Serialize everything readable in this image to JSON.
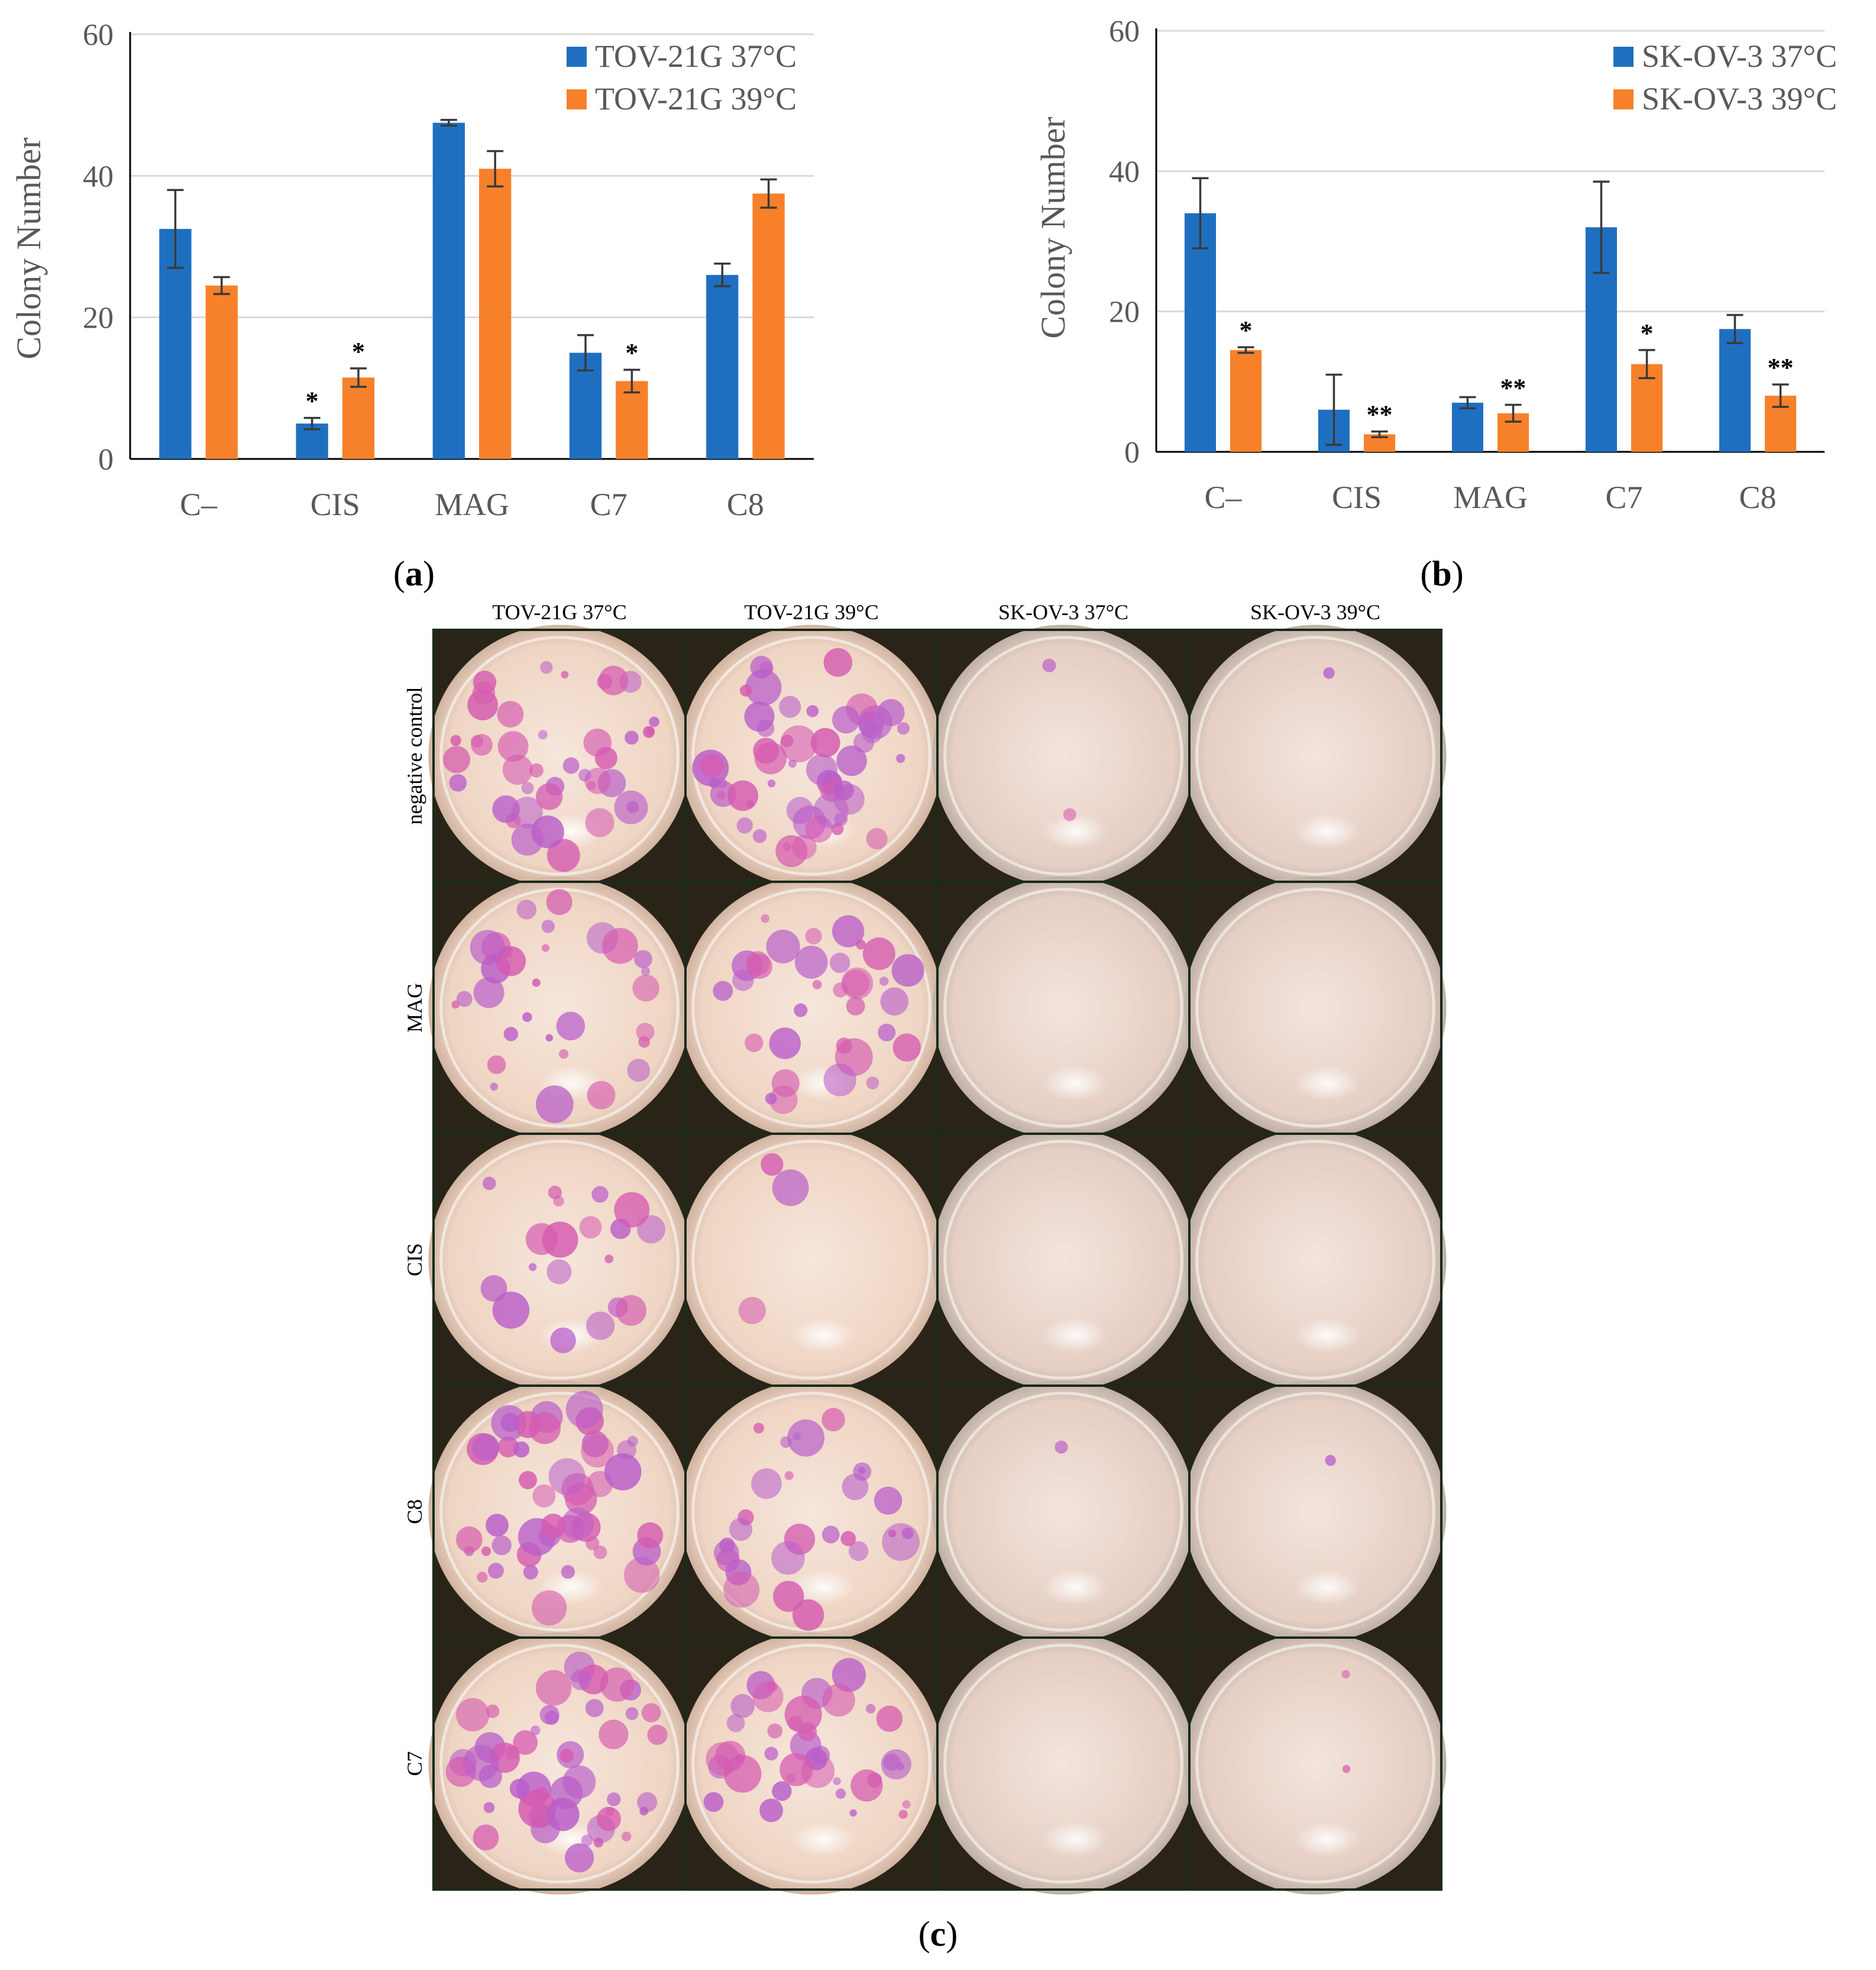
{
  "colors": {
    "series_37": "#1f6fc1",
    "series_39": "#f7812a",
    "axis_text": "#595959",
    "gridline": "#d9d9d9",
    "error_bar": "#3a3a3a",
    "plate_border": "#1a2a1a"
  },
  "chart_data": [
    {
      "type": "bar",
      "panel_label": "a",
      "categories": [
        "C–",
        "CIS",
        "MAG",
        "C7",
        "C8"
      ],
      "ylabel": "Colony Number",
      "ylim": [
        0,
        60
      ],
      "yticks": [
        0,
        20,
        40,
        60
      ],
      "grid": true,
      "legend_position": "top-right",
      "series": [
        {
          "name": "TOV-21G 37°C",
          "values": [
            32.5,
            5,
            47.5,
            15,
            26
          ],
          "errors": [
            5.5,
            0.8,
            0.4,
            2.5,
            1.6
          ],
          "significance": [
            "",
            "*",
            "",
            "",
            ""
          ]
        },
        {
          "name": "TOV-21G 39°C",
          "values": [
            24.5,
            11.5,
            41,
            11,
            37.5
          ],
          "errors": [
            1.2,
            1.3,
            2.5,
            1.6,
            2.0
          ],
          "significance": [
            "",
            "*",
            "",
            "*",
            ""
          ]
        }
      ]
    },
    {
      "type": "bar",
      "panel_label": "b",
      "categories": [
        "C–",
        "CIS",
        "MAG",
        "C7",
        "C8"
      ],
      "ylabel": "Colony Number",
      "ylim": [
        0,
        60
      ],
      "yticks": [
        0,
        20,
        40,
        60
      ],
      "grid": true,
      "legend_position": "top-right",
      "series": [
        {
          "name": "SK-OV-3 37°C",
          "values": [
            34,
            6,
            7,
            32,
            17.5
          ],
          "errors": [
            5,
            5,
            0.8,
            6.5,
            2.0
          ],
          "significance": [
            "",
            "",
            "",
            "",
            ""
          ]
        },
        {
          "name": "SK-OV-3 39°C",
          "values": [
            14.5,
            2.5,
            5.5,
            12.5,
            8
          ],
          "errors": [
            0.4,
            0.4,
            1.2,
            2.0,
            1.6
          ],
          "significance": [
            "*",
            "**",
            "**",
            "*",
            "**"
          ]
        }
      ]
    }
  ],
  "panel_c": {
    "label": "c",
    "columns": [
      "TOV-21G 37°C",
      "TOV-21G 39°C",
      "SK-OV-3 37°C",
      "SK-OV-3 39°C"
    ],
    "rows": [
      "negative control",
      "MAG",
      "CIS",
      "C8",
      "C7"
    ],
    "colony_density": [
      [
        0.75,
        0.95,
        0.03,
        0.02
      ],
      [
        0.55,
        0.6,
        0.0,
        0.0
      ],
      [
        0.35,
        0.05,
        0.0,
        0.0
      ],
      [
        0.8,
        0.5,
        0.02,
        0.02
      ],
      [
        0.85,
        0.7,
        0.0,
        0.04
      ]
    ]
  }
}
